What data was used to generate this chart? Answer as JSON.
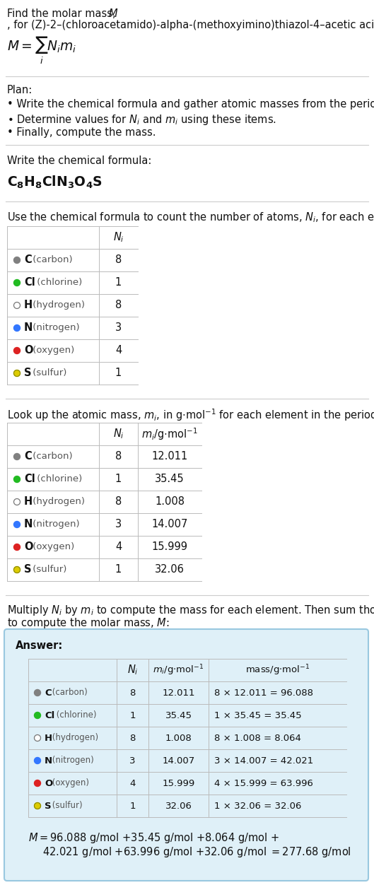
{
  "elements": [
    {
      "symbol": "C",
      "name": "carbon",
      "color": "#808080",
      "filled": true,
      "N": 8,
      "m": "12.011",
      "mass": "8 × 12.011 = 96.088"
    },
    {
      "symbol": "Cl",
      "name": "chlorine",
      "color": "#22bb22",
      "filled": true,
      "N": 1,
      "m": "35.45",
      "mass": "1 × 35.45 = 35.45"
    },
    {
      "symbol": "H",
      "name": "hydrogen",
      "color": "#ffffff",
      "filled": false,
      "N": 8,
      "m": "1.008",
      "mass": "8 × 1.008 = 8.064"
    },
    {
      "symbol": "N",
      "name": "nitrogen",
      "color": "#3377ff",
      "filled": true,
      "N": 3,
      "m": "14.007",
      "mass": "3 × 14.007 = 42.021"
    },
    {
      "symbol": "O",
      "name": "oxygen",
      "color": "#dd2222",
      "filled": true,
      "N": 4,
      "m": "15.999",
      "mass": "4 × 15.999 = 63.996"
    },
    {
      "symbol": "S",
      "name": "sulfur",
      "color": "#ddcc00",
      "filled": true,
      "N": 1,
      "m": "32.06",
      "mass": "1 × 32.06 = 32.06"
    }
  ],
  "bg_color": "#ffffff",
  "answer_box_color": "#dff0f8",
  "answer_box_border": "#99c8e0",
  "table_border": "#bbbbbb",
  "sep_color": "#cccccc",
  "text_color": "#111111",
  "gray_color": "#555555",
  "fs": 10.5,
  "sfs": 9.5
}
